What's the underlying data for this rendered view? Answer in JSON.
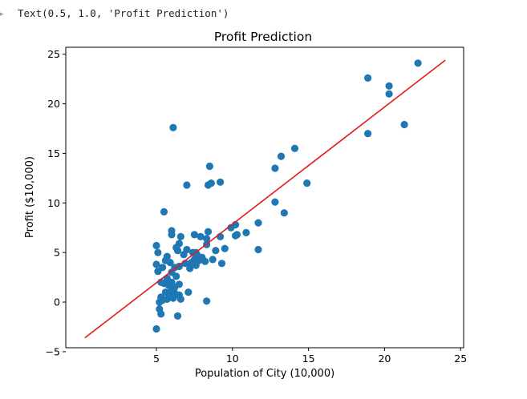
{
  "cell_output": {
    "prompt_icon": "output-chevron-icon",
    "text": "Text(0.5, 1.0, 'Profit Prediction')"
  },
  "chart_data": {
    "type": "scatter",
    "title": "Profit Prediction",
    "xlabel": "Population of City (10,000)",
    "ylabel": "Profit ($10,000)",
    "xlim": [
      -0.96,
      25.2
    ],
    "ylim": [
      -4.6,
      25.7
    ],
    "xticks": [
      5,
      10,
      15,
      20,
      25
    ],
    "yticks": [
      -5,
      0,
      5,
      10,
      15,
      20,
      25
    ],
    "grid": false,
    "series": [
      {
        "type": "scatter",
        "color": "#1f77b4",
        "points": [
          [
            22.2,
            24.1
          ],
          [
            18.9,
            22.6
          ],
          [
            20.3,
            21.8
          ],
          [
            20.3,
            21.0
          ],
          [
            21.3,
            17.9
          ],
          [
            18.9,
            17.0
          ],
          [
            6.1,
            17.6
          ],
          [
            14.1,
            15.5
          ],
          [
            13.2,
            14.7
          ],
          [
            12.8,
            13.5
          ],
          [
            8.5,
            13.7
          ],
          [
            7.0,
            11.8
          ],
          [
            8.4,
            11.8
          ],
          [
            8.6,
            12.0
          ],
          [
            9.2,
            12.1
          ],
          [
            14.9,
            12.0
          ],
          [
            5.5,
            9.1
          ],
          [
            12.8,
            10.1
          ],
          [
            13.4,
            9.0
          ],
          [
            11.7,
            8.0
          ],
          [
            10.2,
            7.8
          ],
          [
            9.9,
            7.5
          ],
          [
            10.9,
            7.0
          ],
          [
            10.2,
            6.7
          ],
          [
            10.3,
            6.8
          ],
          [
            9.2,
            6.6
          ],
          [
            8.4,
            7.1
          ],
          [
            7.5,
            6.8
          ],
          [
            7.9,
            6.6
          ],
          [
            8.3,
            6.4
          ],
          [
            8.3,
            5.8
          ],
          [
            6.0,
            7.2
          ],
          [
            6.0,
            6.8
          ],
          [
            6.6,
            6.6
          ],
          [
            6.5,
            5.9
          ],
          [
            6.3,
            5.5
          ],
          [
            6.4,
            5.2
          ],
          [
            6.8,
            4.8
          ],
          [
            7.0,
            5.3
          ],
          [
            7.4,
            5.0
          ],
          [
            7.6,
            5.0
          ],
          [
            7.7,
            4.7
          ],
          [
            7.5,
            4.3
          ],
          [
            7.3,
            4.0
          ],
          [
            7.8,
            4.2
          ],
          [
            8.0,
            4.5
          ],
          [
            8.7,
            4.3
          ],
          [
            8.2,
            4.1
          ],
          [
            8.9,
            5.2
          ],
          [
            9.5,
            5.4
          ],
          [
            9.3,
            3.9
          ],
          [
            11.7,
            5.3
          ],
          [
            5.0,
            5.7
          ],
          [
            5.1,
            5.0
          ],
          [
            5.7,
            4.6
          ],
          [
            5.6,
            4.2
          ],
          [
            5.9,
            4.0
          ],
          [
            6.2,
            3.5
          ],
          [
            6.0,
            3.0
          ],
          [
            5.4,
            3.5
          ],
          [
            5.0,
            3.8
          ],
          [
            5.1,
            3.1
          ],
          [
            5.7,
            2.4
          ],
          [
            6.5,
            3.6
          ],
          [
            6.9,
            3.9
          ],
          [
            7.2,
            3.4
          ],
          [
            7.6,
            3.7
          ],
          [
            6.3,
            2.6
          ],
          [
            5.3,
            2.0
          ],
          [
            5.5,
            1.9
          ],
          [
            6.0,
            2.0
          ],
          [
            6.2,
            1.5
          ],
          [
            6.0,
            1.2
          ],
          [
            5.6,
            1.0
          ],
          [
            5.9,
            0.7
          ],
          [
            5.7,
            0.3
          ],
          [
            6.1,
            0.4
          ],
          [
            6.5,
            0.7
          ],
          [
            6.6,
            0.3
          ],
          [
            5.3,
            0.5
          ],
          [
            5.2,
            0.0
          ],
          [
            7.1,
            1.0
          ],
          [
            6.4,
            -1.4
          ],
          [
            5.2,
            -0.7
          ],
          [
            5.3,
            -1.2
          ],
          [
            5.0,
            -2.7
          ],
          [
            8.3,
            0.1
          ],
          [
            6.2,
            0.9
          ],
          [
            5.8,
            1.7
          ],
          [
            6.5,
            1.8
          ],
          [
            5.4,
            0.2
          ]
        ]
      },
      {
        "type": "line",
        "color": "#e31a1c",
        "points": [
          [
            0.3,
            -3.6
          ],
          [
            24.0,
            24.4
          ]
        ]
      }
    ]
  }
}
